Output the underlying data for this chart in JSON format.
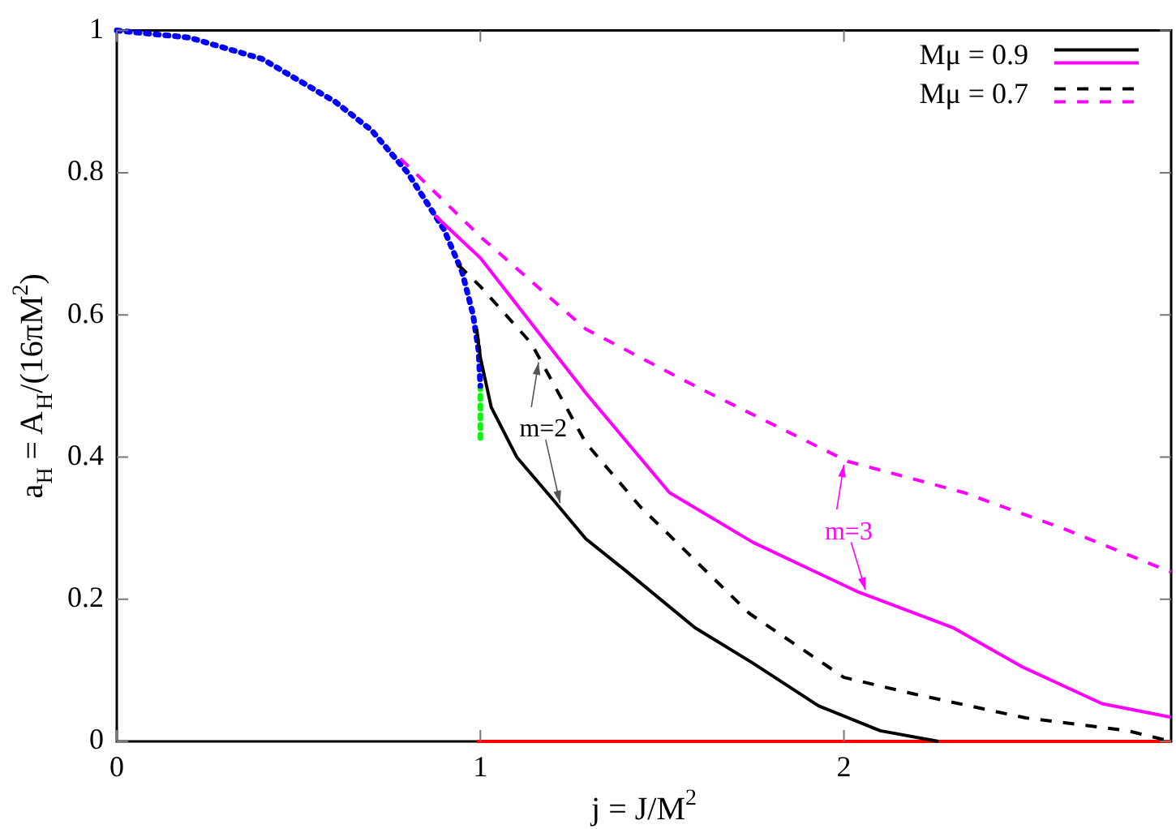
{
  "chart_data": {
    "type": "line",
    "xlabel": "j = J/M$^{2}$",
    "ylabel": "a$_{H}$ = A$_{H}$/(16πM$^{2}$)",
    "xlim": [
      0,
      2.9
    ],
    "ylim": [
      0,
      1
    ],
    "xticks": [
      0,
      1,
      2
    ],
    "yticks": [
      0,
      0.2,
      0.4,
      0.6,
      0.8,
      1
    ],
    "legend": "top right",
    "marker": "none",
    "series": [
      {
        "name": "Mμ = 0.9",
        "color": "#000000",
        "line_style": "solid",
        "x": [
          0.99,
          1.0,
          1.03,
          1.1,
          1.2,
          1.29,
          1.4,
          1.59,
          1.75,
          1.93,
          2.1,
          2.26
        ],
        "values": [
          0.58,
          0.54,
          0.47,
          0.4,
          0.34,
          0.285,
          0.24,
          0.16,
          0.11,
          0.05,
          0.015,
          0
        ]
      },
      {
        "color": "#ff00ff",
        "line_style": "solid",
        "x": [
          0.875,
          1.0,
          1.29,
          1.52,
          1.75,
          2.04,
          2.3,
          2.49,
          2.71,
          2.9
        ],
        "values": [
          0.74,
          0.68,
          0.49,
          0.35,
          0.28,
          0.21,
          0.16,
          0.105,
          0.053,
          0.034
        ]
      },
      {
        "name": "Mμ = 0.7",
        "color": "#000000",
        "line_style": "dashed",
        "x": [
          0.94,
          1.0,
          1.07,
          1.14,
          1.29,
          1.44,
          1.6,
          1.74,
          2.0,
          2.19,
          2.5,
          2.78,
          2.9
        ],
        "values": [
          0.67,
          0.64,
          0.6,
          0.56,
          0.42,
          0.33,
          0.25,
          0.18,
          0.09,
          0.067,
          0.033,
          0.015,
          0
        ]
      },
      {
        "color": "#ff00ff",
        "line_style": "dashed",
        "x": [
          0.78,
          1.0,
          1.29,
          1.59,
          2.01,
          2.33,
          2.6,
          2.9
        ],
        "values": [
          0.82,
          0.71,
          0.58,
          0.5,
          0.394,
          0.35,
          0.3,
          0.238
        ]
      },
      {
        "color": "#0000ff",
        "line_style": "dotted",
        "x": [
          0,
          0.2,
          0.4,
          0.6,
          0.7,
          0.8,
          0.9,
          0.95,
          0.98,
          0.995,
          1
        ],
        "values": [
          1,
          0.99,
          0.96,
          0.9,
          0.86,
          0.8,
          0.72,
          0.66,
          0.6,
          0.55,
          0.5
        ]
      },
      {
        "color": "#00ff00",
        "line_style": "dotted",
        "x": [
          1,
          1
        ],
        "values": [
          0.5,
          0.42
        ]
      },
      {
        "color": "#ff0000",
        "line_style": "solid",
        "x": [
          0.99,
          2.9
        ],
        "values": [
          0,
          0
        ]
      }
    ],
    "annotations": [
      {
        "text": "m=2",
        "x": 1.16,
        "y": 0.54
      },
      {
        "text": "m=3",
        "x": 2.0,
        "y": 0.396
      }
    ]
  }
}
